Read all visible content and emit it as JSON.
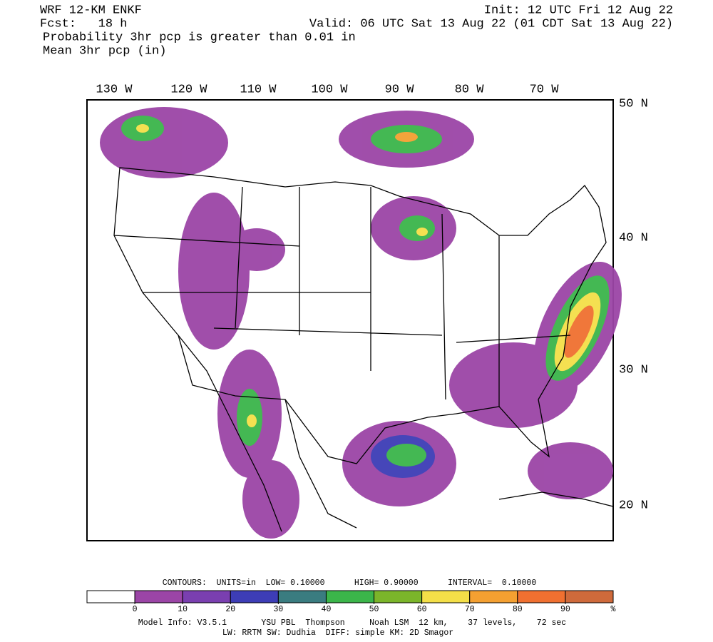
{
  "header": {
    "model": "WRF 12-KM ENKF",
    "init": "Init: 12 UTC Fri 12 Aug 22",
    "fcst": "Fcst:   18 h",
    "valid": "Valid: 06 UTC Sat 13 Aug 22 (01 CDT Sat 13 Aug 22)",
    "field1": "Probability 3hr pcp is greater than 0.01 in",
    "field2": "Mean 3hr pcp (in)"
  },
  "map": {
    "lon_labels": [
      "130 W",
      "120 W",
      "110 W",
      "100 W",
      "90 W",
      "80 W",
      "70 W"
    ],
    "lat_labels": [
      "50 N",
      "40 N",
      "30 N",
      "20 N"
    ]
  },
  "colorbar": {
    "contours": "CONTOURS:  UNITS=in  LOW= 0.10000      HIGH= 0.90000      INTERVAL=  0.10000",
    "ticks": [
      0,
      10,
      20,
      30,
      40,
      50,
      60,
      70,
      80,
      90
    ],
    "unit": "%",
    "colors": [
      "#ffffff",
      "#9b45a6",
      "#7a3fb0",
      "#3d3db6",
      "#3a7c80",
      "#3bb54a",
      "#7bb52a",
      "#f4df48",
      "#f4a031",
      "#f07030",
      "#cf6a3b"
    ]
  },
  "footer": {
    "line1": "Model Info: V3.5.1       YSU PBL  Thompson     Noah LSM  12 km,    37 levels,    72 sec",
    "line2": "LW: RRTM SW: Dudhia  DIFF: simple KM: 2D Smagor"
  }
}
